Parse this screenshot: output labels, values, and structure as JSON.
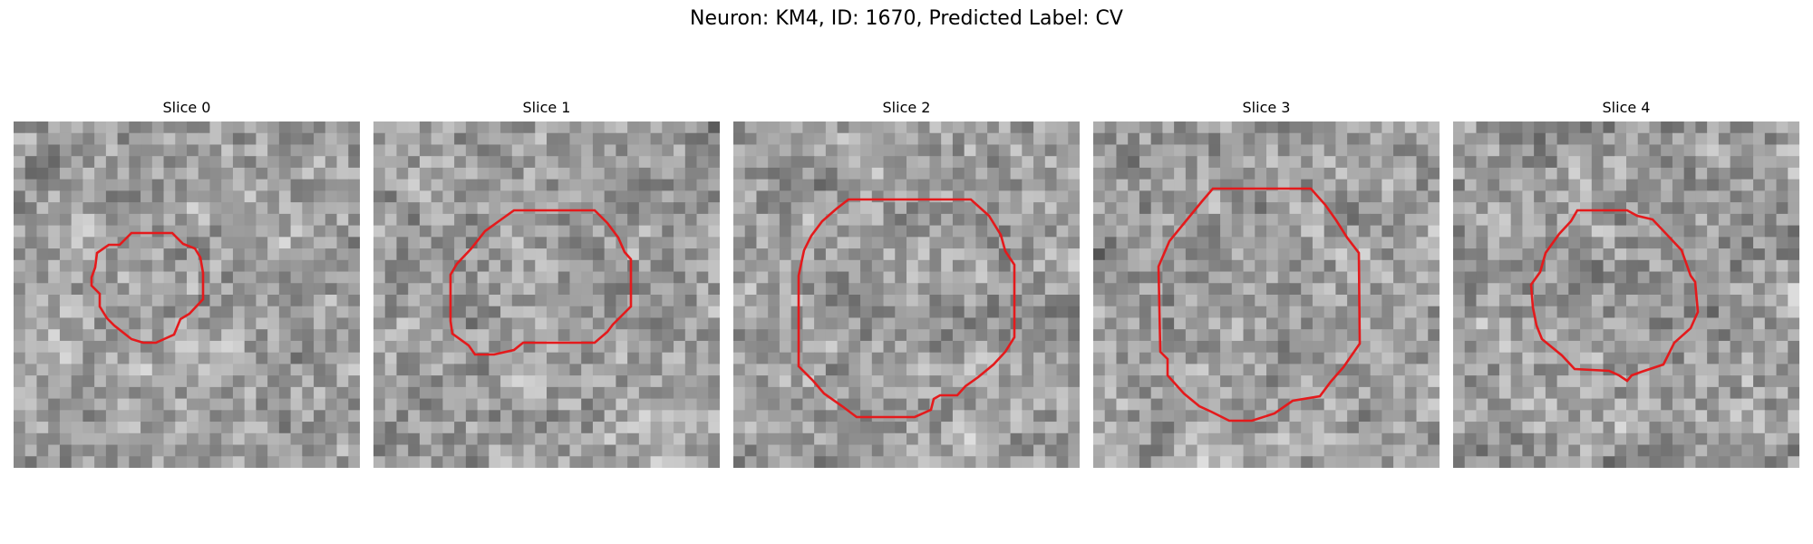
{
  "figure": {
    "title": "Neuron: KM4, ID: 1670, Predicted Label: CV"
  },
  "panels": [
    {
      "title": "Slice 0"
    },
    {
      "title": "Slice 1"
    },
    {
      "title": "Slice 2"
    },
    {
      "title": "Slice 3"
    },
    {
      "title": "Slice 4"
    }
  ],
  "colors": {
    "contour": "#e41a1c",
    "background": "#ffffff"
  }
}
